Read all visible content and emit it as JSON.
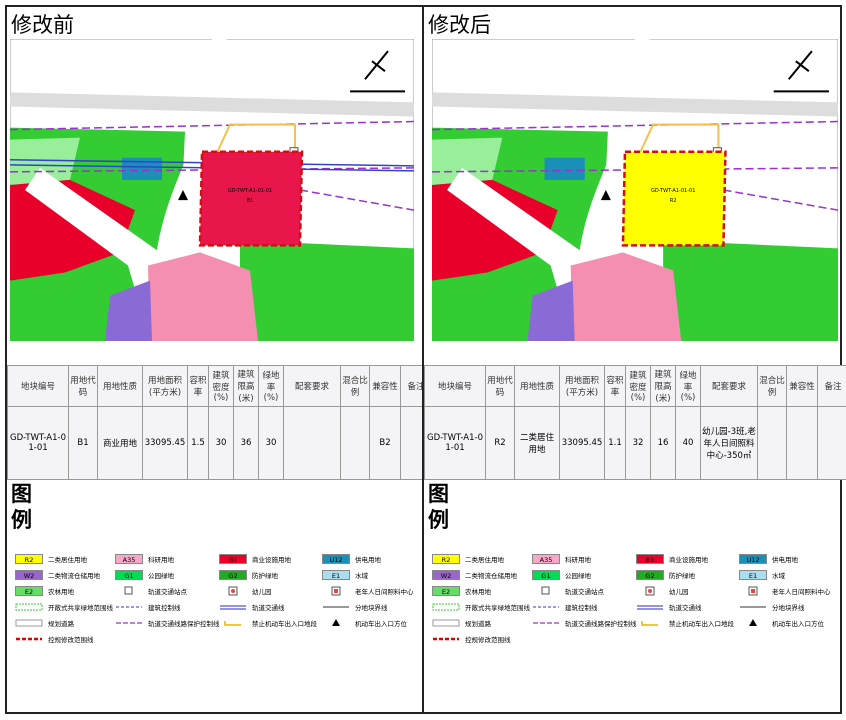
{
  "panels": [
    {
      "title": "修改前",
      "parcel": {
        "id": "GD-TWT-A1-01-01",
        "code": "B1",
        "color": "#e8164a"
      },
      "table": {
        "headers": [
          "地块编号",
          "用地代码",
          "用地性质",
          "用地面积(平方米)",
          "容积率",
          "建筑密度(%)",
          "建筑限高(米)",
          "绿地率(%)",
          "配套要求",
          "混合比例",
          "兼容性",
          "备注"
        ],
        "rows": [
          [
            "GD-TWT-A1-01-01",
            "B1",
            "商业用地",
            "33095.45",
            "1.5",
            "30",
            "36",
            "30",
            null,
            null,
            "B2",
            null
          ]
        ]
      }
    },
    {
      "title": "修改后",
      "parcel": {
        "id": "GD-TWT-A1-01-01",
        "code": "R2",
        "color": "#ffff00"
      },
      "table": {
        "headers": [
          "地块编号",
          "用地代码",
          "用地性质",
          "用地面积(平方米)",
          "容积率",
          "建筑密度(%)",
          "建筑限高(米)",
          "绿地率(%)",
          "配套要求",
          "混合比例",
          "兼容性",
          "备注"
        ],
        "rows": [
          [
            "GD-TWT-A1-01-01",
            "R2",
            "二类居住用地",
            "33095.45",
            "1.1",
            "32",
            "16",
            "40",
            "幼儿园-3班,老年人日间照料中心-350㎡",
            null,
            null,
            null
          ]
        ]
      }
    }
  ],
  "legend": {
    "title": "图例",
    "items": [
      {
        "code": "R2",
        "label": "二类居住用地",
        "color": "#ffff00"
      },
      {
        "code": "A35",
        "label": "科研用地",
        "color": "#f7a8c8"
      },
      {
        "code": "B1",
        "label": "商业设施用地",
        "color": "#e8002a"
      },
      {
        "code": "U12",
        "label": "供电用地",
        "color": "#1a8fb8"
      },
      {
        "code": "W2",
        "label": "二类物流仓储用地",
        "color": "#9966cc"
      },
      {
        "code": "G1",
        "label": "公园绿地",
        "color": "#00dd55"
      },
      {
        "code": "G2",
        "label": "防护绿地",
        "color": "#22aa22"
      },
      {
        "code": "E1",
        "label": "水域",
        "color": "#aaddee"
      },
      {
        "code": "E2",
        "label": "农林用地",
        "color": "#66dd66"
      },
      {
        "label": "轨道交通站点"
      },
      {
        "label": "幼儿园"
      },
      {
        "label": "老年人日间照料中心"
      },
      {
        "label": "开敞式共享绿地范围线"
      },
      {
        "label": "建筑控制线"
      },
      {
        "label": "轨道交通线"
      },
      {
        "label": "分地块界线"
      },
      {
        "label": "规划道路"
      },
      {
        "label": "轨道交通线路保护控制线"
      },
      {
        "label": "禁止机动车出入口地段"
      },
      {
        "label": "机动车出入口方位"
      },
      {
        "label": "控规修改范围线"
      }
    ]
  }
}
